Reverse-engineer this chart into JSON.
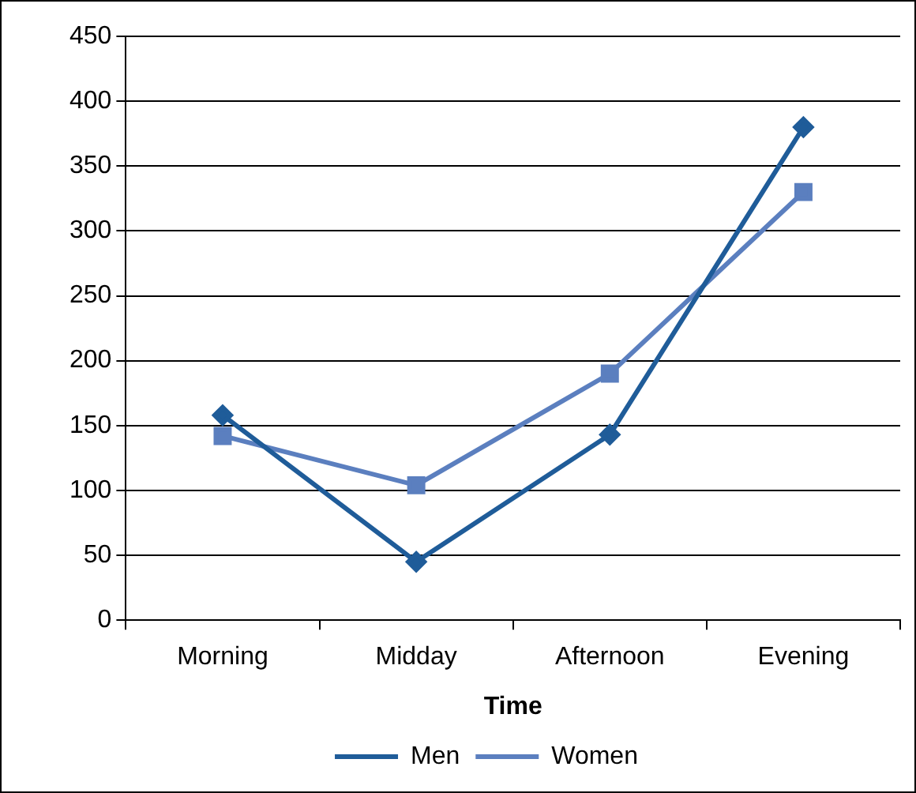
{
  "chart_data": {
    "type": "line",
    "xlabel": "Time",
    "categories": [
      "Morning",
      "Midday",
      "Afternoon",
      "Evening"
    ],
    "series": [
      {
        "name": "Men",
        "color": "#1f5c99",
        "marker": "diamond",
        "values": [
          158,
          45,
          143,
          380
        ]
      },
      {
        "name": "Women",
        "color": "#5b7fbf",
        "marker": "square",
        "values": [
          142,
          104,
          190,
          330
        ]
      }
    ],
    "ylim": [
      0,
      450
    ],
    "yticks": [
      0,
      50,
      100,
      150,
      200,
      250,
      300,
      350,
      400,
      450
    ],
    "grid": "y",
    "legend": "bottom"
  }
}
